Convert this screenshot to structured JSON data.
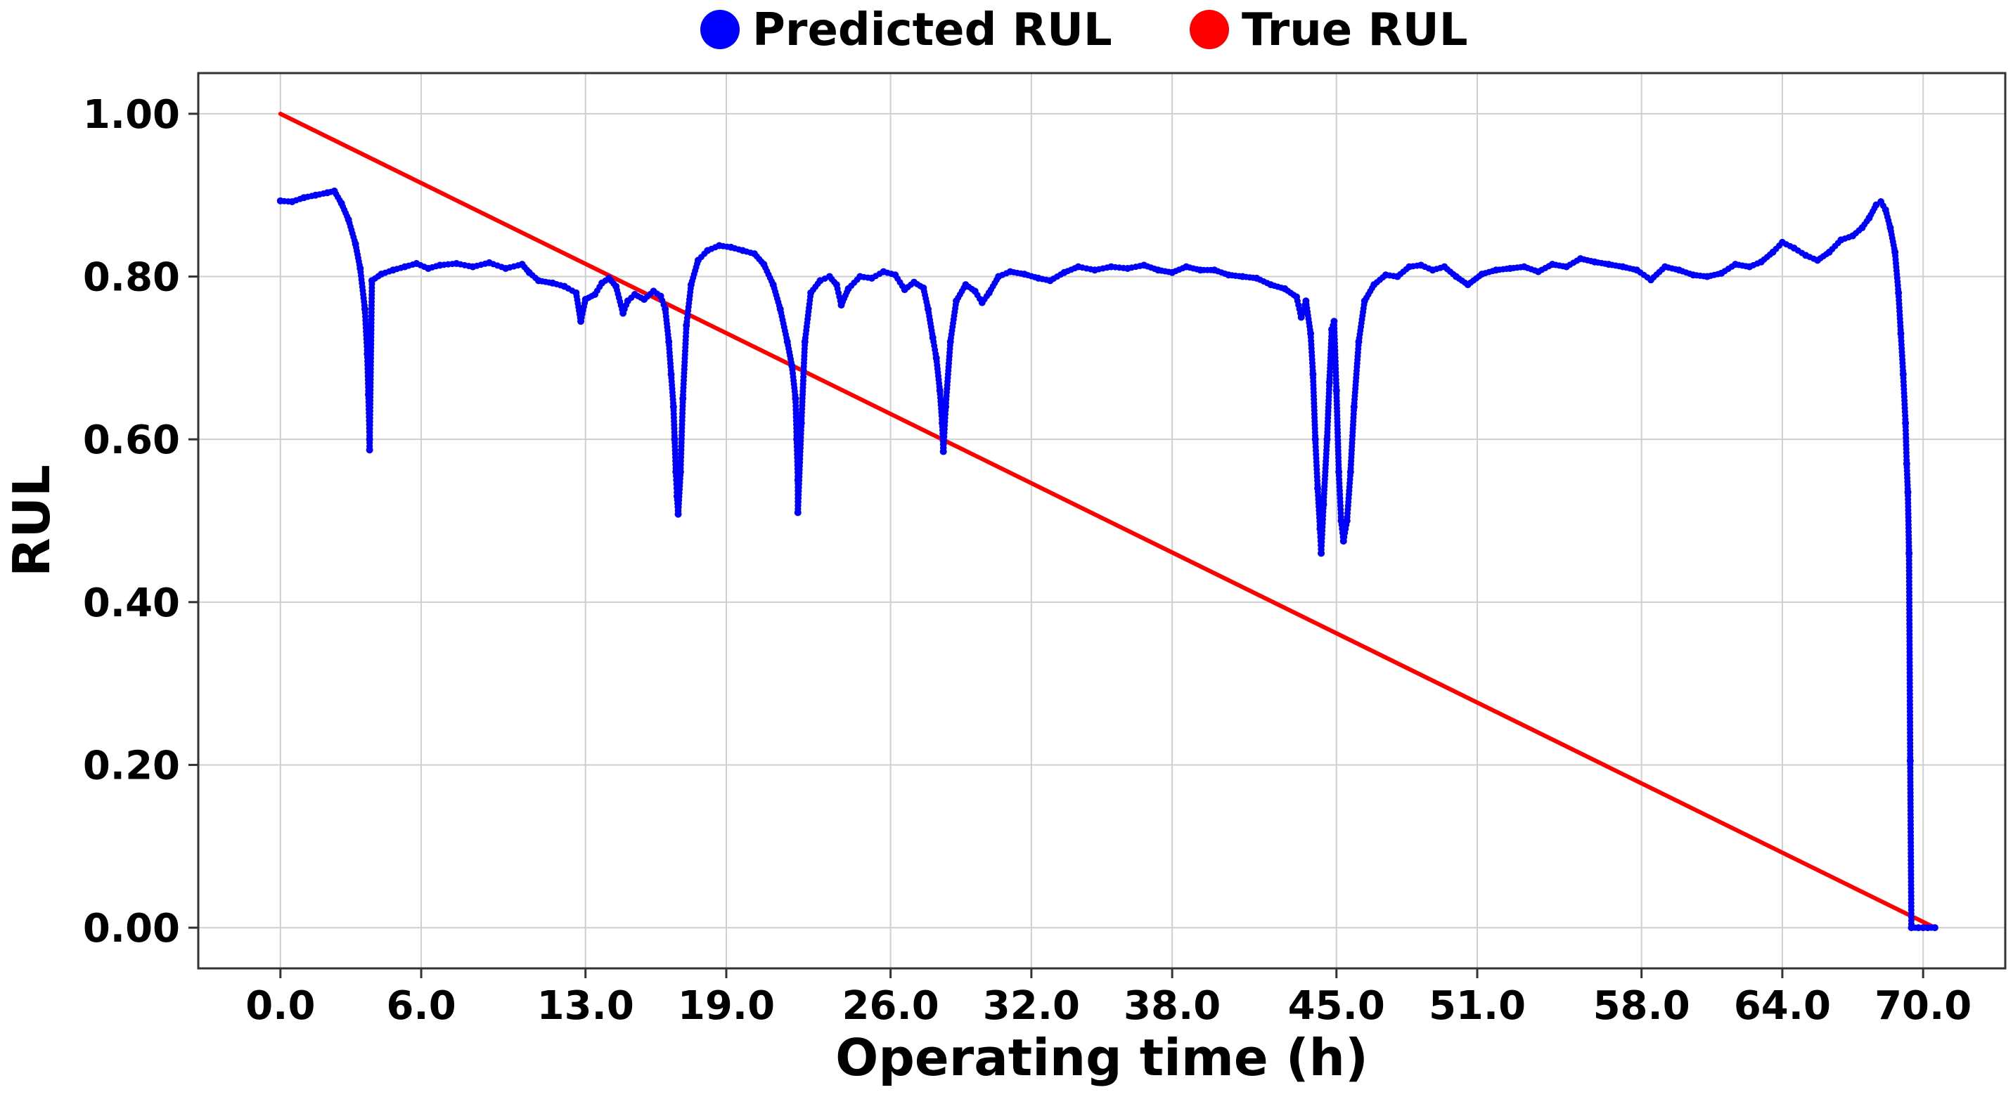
{
  "chart_data": {
    "type": "scatter",
    "xlabel": "Operating time (h)",
    "ylabel": "RUL",
    "x_ticks": [
      "0.0",
      "6.0",
      "13.0",
      "19.0",
      "26.0",
      "32.0",
      "38.0",
      "45.0",
      "51.0",
      "58.0",
      "64.0",
      "70.0"
    ],
    "y_ticks": [
      "0.00",
      "0.20",
      "0.40",
      "0.60",
      "0.80",
      "1.00"
    ],
    "y_tick_values": [
      0,
      0.2,
      0.4,
      0.6,
      0.8,
      1.0
    ],
    "xlim": [
      -3.5,
      73.5
    ],
    "ylim": [
      -0.05,
      1.05
    ],
    "grid": true,
    "legend_placement": "top-center",
    "series": [
      {
        "name": "Predicted RUL",
        "color": "#0000ff",
        "marker": "dot",
        "points": [
          [
            0.0,
            0.893
          ],
          [
            0.5,
            0.892
          ],
          [
            1.0,
            0.897
          ],
          [
            1.5,
            0.9
          ],
          [
            2.0,
            0.903
          ],
          [
            2.3,
            0.905
          ],
          [
            2.6,
            0.89
          ],
          [
            2.9,
            0.87
          ],
          [
            3.2,
            0.84
          ],
          [
            3.4,
            0.81
          ],
          [
            3.6,
            0.76
          ],
          [
            3.7,
            0.705
          ],
          [
            3.75,
            0.655
          ],
          [
            3.8,
            0.6
          ],
          [
            3.8,
            0.587
          ],
          [
            3.9,
            0.795
          ],
          [
            4.3,
            0.803
          ],
          [
            4.8,
            0.808
          ],
          [
            5.3,
            0.812
          ],
          [
            5.8,
            0.816
          ],
          [
            6.3,
            0.81
          ],
          [
            6.8,
            0.814
          ],
          [
            7.5,
            0.816
          ],
          [
            8.2,
            0.812
          ],
          [
            8.9,
            0.817
          ],
          [
            9.6,
            0.81
          ],
          [
            10.3,
            0.815
          ],
          [
            10.6,
            0.805
          ],
          [
            11.0,
            0.795
          ],
          [
            11.6,
            0.792
          ],
          [
            12.1,
            0.788
          ],
          [
            12.6,
            0.78
          ],
          [
            12.8,
            0.745
          ],
          [
            13.0,
            0.772
          ],
          [
            13.4,
            0.778
          ],
          [
            13.7,
            0.792
          ],
          [
            14.0,
            0.798
          ],
          [
            14.3,
            0.788
          ],
          [
            14.6,
            0.755
          ],
          [
            14.8,
            0.77
          ],
          [
            15.1,
            0.778
          ],
          [
            15.5,
            0.772
          ],
          [
            15.9,
            0.782
          ],
          [
            16.2,
            0.776
          ],
          [
            16.4,
            0.76
          ],
          [
            16.55,
            0.72
          ],
          [
            16.65,
            0.68
          ],
          [
            16.75,
            0.64
          ],
          [
            16.8,
            0.6
          ],
          [
            16.85,
            0.56
          ],
          [
            16.9,
            0.53
          ],
          [
            16.95,
            0.508
          ],
          [
            17.05,
            0.56
          ],
          [
            17.15,
            0.65
          ],
          [
            17.3,
            0.74
          ],
          [
            17.5,
            0.79
          ],
          [
            17.8,
            0.82
          ],
          [
            18.2,
            0.832
          ],
          [
            18.7,
            0.838
          ],
          [
            19.2,
            0.836
          ],
          [
            19.7,
            0.832
          ],
          [
            20.2,
            0.828
          ],
          [
            20.6,
            0.815
          ],
          [
            21.0,
            0.79
          ],
          [
            21.3,
            0.76
          ],
          [
            21.6,
            0.72
          ],
          [
            21.8,
            0.69
          ],
          [
            21.95,
            0.65
          ],
          [
            22.0,
            0.6
          ],
          [
            22.05,
            0.55
          ],
          [
            22.05,
            0.51
          ],
          [
            22.2,
            0.62
          ],
          [
            22.35,
            0.72
          ],
          [
            22.6,
            0.78
          ],
          [
            23.0,
            0.795
          ],
          [
            23.4,
            0.8
          ],
          [
            23.7,
            0.79
          ],
          [
            23.9,
            0.765
          ],
          [
            24.2,
            0.785
          ],
          [
            24.7,
            0.8
          ],
          [
            25.2,
            0.798
          ],
          [
            25.7,
            0.806
          ],
          [
            26.2,
            0.802
          ],
          [
            26.6,
            0.784
          ],
          [
            27.0,
            0.793
          ],
          [
            27.4,
            0.786
          ],
          [
            27.6,
            0.76
          ],
          [
            27.8,
            0.725
          ],
          [
            27.95,
            0.7
          ],
          [
            28.1,
            0.66
          ],
          [
            28.2,
            0.62
          ],
          [
            28.25,
            0.585
          ],
          [
            28.35,
            0.64
          ],
          [
            28.55,
            0.72
          ],
          [
            28.8,
            0.77
          ],
          [
            29.2,
            0.79
          ],
          [
            29.6,
            0.782
          ],
          [
            29.9,
            0.768
          ],
          [
            30.2,
            0.78
          ],
          [
            30.6,
            0.8
          ],
          [
            31.1,
            0.806
          ],
          [
            31.7,
            0.803
          ],
          [
            32.3,
            0.798
          ],
          [
            32.8,
            0.795
          ],
          [
            33.4,
            0.805
          ],
          [
            34.0,
            0.812
          ],
          [
            34.7,
            0.808
          ],
          [
            35.4,
            0.812
          ],
          [
            36.1,
            0.81
          ],
          [
            36.8,
            0.814
          ],
          [
            37.4,
            0.808
          ],
          [
            38.0,
            0.805
          ],
          [
            38.6,
            0.812
          ],
          [
            39.2,
            0.808
          ],
          [
            39.8,
            0.808
          ],
          [
            40.4,
            0.802
          ],
          [
            41.0,
            0.8
          ],
          [
            41.6,
            0.798
          ],
          [
            42.2,
            0.79
          ],
          [
            42.8,
            0.785
          ],
          [
            43.3,
            0.775
          ],
          [
            43.5,
            0.75
          ],
          [
            43.7,
            0.77
          ],
          [
            43.9,
            0.73
          ],
          [
            44.0,
            0.68
          ],
          [
            44.1,
            0.6
          ],
          [
            44.2,
            0.54
          ],
          [
            44.3,
            0.49
          ],
          [
            44.35,
            0.46
          ],
          [
            44.45,
            0.52
          ],
          [
            44.6,
            0.6
          ],
          [
            44.7,
            0.67
          ],
          [
            44.8,
            0.735
          ],
          [
            44.9,
            0.745
          ],
          [
            45.0,
            0.66
          ],
          [
            45.1,
            0.56
          ],
          [
            45.2,
            0.5
          ],
          [
            45.3,
            0.475
          ],
          [
            45.45,
            0.5
          ],
          [
            45.6,
            0.56
          ],
          [
            45.75,
            0.64
          ],
          [
            45.95,
            0.72
          ],
          [
            46.2,
            0.77
          ],
          [
            46.6,
            0.79
          ],
          [
            47.1,
            0.802
          ],
          [
            47.6,
            0.8
          ],
          [
            48.1,
            0.812
          ],
          [
            48.6,
            0.814
          ],
          [
            49.1,
            0.808
          ],
          [
            49.6,
            0.812
          ],
          [
            50.1,
            0.8
          ],
          [
            50.6,
            0.79
          ],
          [
            51.2,
            0.803
          ],
          [
            51.8,
            0.808
          ],
          [
            52.4,
            0.81
          ],
          [
            53.0,
            0.812
          ],
          [
            53.6,
            0.806
          ],
          [
            54.2,
            0.815
          ],
          [
            54.8,
            0.812
          ],
          [
            55.4,
            0.822
          ],
          [
            56.0,
            0.818
          ],
          [
            56.6,
            0.815
          ],
          [
            57.2,
            0.812
          ],
          [
            57.8,
            0.808
          ],
          [
            58.4,
            0.796
          ],
          [
            59.0,
            0.812
          ],
          [
            59.6,
            0.808
          ],
          [
            60.2,
            0.802
          ],
          [
            60.8,
            0.8
          ],
          [
            61.4,
            0.804
          ],
          [
            62.0,
            0.815
          ],
          [
            62.6,
            0.812
          ],
          [
            63.1,
            0.818
          ],
          [
            63.6,
            0.83
          ],
          [
            64.0,
            0.842
          ],
          [
            64.5,
            0.835
          ],
          [
            65.0,
            0.826
          ],
          [
            65.5,
            0.82
          ],
          [
            66.0,
            0.83
          ],
          [
            66.5,
            0.845
          ],
          [
            67.0,
            0.85
          ],
          [
            67.4,
            0.86
          ],
          [
            67.7,
            0.872
          ],
          [
            68.0,
            0.888
          ],
          [
            68.2,
            0.892
          ],
          [
            68.4,
            0.882
          ],
          [
            68.6,
            0.86
          ],
          [
            68.8,
            0.83
          ],
          [
            68.95,
            0.78
          ],
          [
            69.05,
            0.73
          ],
          [
            69.15,
            0.68
          ],
          [
            69.25,
            0.62
          ],
          [
            69.3,
            0.57
          ],
          [
            69.35,
            0.535
          ],
          [
            69.4,
            0.46
          ],
          [
            69.45,
            0.205
          ],
          [
            69.5,
            0.0
          ],
          [
            69.8,
            0.0
          ],
          [
            70.0,
            0.0
          ],
          [
            70.2,
            0.0
          ],
          [
            70.5,
            0.0
          ]
        ]
      },
      {
        "name": "True RUL",
        "color": "#ff0000",
        "marker": "line",
        "points": [
          [
            0.0,
            1.0
          ],
          [
            70.5,
            0.0
          ]
        ]
      }
    ]
  }
}
